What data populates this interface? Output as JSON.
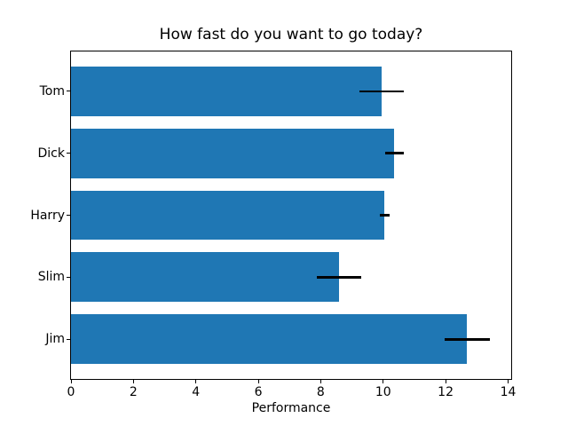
{
  "chart_data": {
    "type": "bar",
    "orientation": "horizontal",
    "title": "How fast do you want to go today?",
    "xlabel": "Performance",
    "ylabel": "",
    "categories": [
      "Tom",
      "Dick",
      "Harry",
      "Slim",
      "Jim"
    ],
    "values": [
      9.95,
      10.36,
      10.04,
      8.57,
      12.69
    ],
    "xerr": [
      0.71,
      0.29,
      0.16,
      0.71,
      0.73
    ],
    "xticks": [
      0,
      2,
      4,
      6,
      8,
      10,
      12,
      14
    ],
    "xtick_labels": [
      "0",
      "2",
      "4",
      "6",
      "8",
      "10",
      "12",
      "14"
    ],
    "xlim": [
      0,
      14.1
    ],
    "ylim": [
      -0.64,
      4.64
    ],
    "y_inverted": true,
    "bar_height": 0.8,
    "bar_color": "#1f77b4",
    "error_color": "#000000",
    "background_color": "#ffffff",
    "spine_color": "#000000",
    "grid": false,
    "legend": null
  }
}
